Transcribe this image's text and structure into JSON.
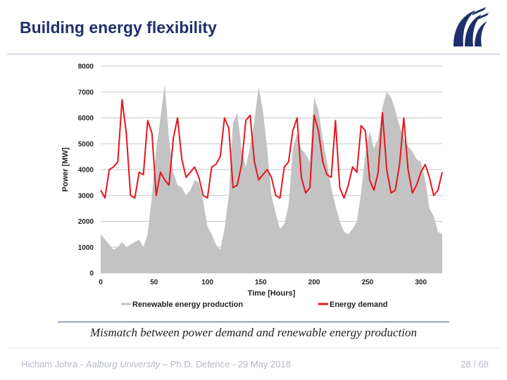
{
  "slide": {
    "title": "Building energy flexibility",
    "caption": "Mismatch between power demand and renewable energy production",
    "footer_author": "Hicham Johra - ",
    "footer_univ": "Aalborg University",
    "footer_rest": " – Ph.D. Defence - 29 May 2018",
    "page": "28 / 68",
    "logo_icon": "aalborg-university-logo"
  },
  "colors": {
    "title": "#1f2f6b",
    "demand": "#e8141b",
    "renewable": "#c3c3c3",
    "logo": "#1f2f6b"
  },
  "chart_data": {
    "type": "area",
    "xlabel": "Time [Hours]",
    "ylabel": "Power [MW]",
    "xlim": [
      0,
      320
    ],
    "ylim": [
      0,
      8000
    ],
    "xticks": [
      0,
      50,
      100,
      150,
      200,
      250,
      300
    ],
    "yticks": [
      0,
      1000,
      2000,
      3000,
      4000,
      5000,
      6000,
      7000,
      8000
    ],
    "grid": "horizontal",
    "legend_position": "bottom",
    "series": [
      {
        "name": "Renewable energy production",
        "kind": "area",
        "x": [
          0,
          4,
          8,
          12,
          16,
          20,
          24,
          28,
          32,
          36,
          40,
          44,
          48,
          52,
          56,
          60,
          64,
          68,
          72,
          76,
          80,
          84,
          88,
          92,
          96,
          100,
          104,
          108,
          112,
          116,
          120,
          124,
          128,
          132,
          136,
          140,
          144,
          148,
          152,
          156,
          160,
          164,
          168,
          172,
          176,
          180,
          184,
          188,
          192,
          196,
          200,
          204,
          208,
          212,
          216,
          220,
          224,
          228,
          232,
          236,
          240,
          244,
          248,
          252,
          256,
          260,
          264,
          268,
          272,
          276,
          280,
          284,
          288,
          292,
          296,
          300,
          304,
          308,
          312,
          316,
          320
        ],
        "values": [
          1500,
          1300,
          1100,
          900,
          1000,
          1200,
          1000,
          1100,
          1200,
          1300,
          1000,
          1500,
          3000,
          4800,
          6000,
          7300,
          5200,
          3900,
          3400,
          3300,
          3000,
          3200,
          3600,
          3500,
          2800,
          1800,
          1500,
          1100,
          900,
          1700,
          3000,
          5800,
          6200,
          4800,
          4100,
          4900,
          5900,
          7200,
          6300,
          4800,
          3000,
          2300,
          1700,
          1900,
          2600,
          4800,
          5400,
          4800,
          4600,
          4300,
          6800,
          6300,
          5200,
          4300,
          3300,
          2600,
          2000,
          1600,
          1500,
          1700,
          2000,
          3100,
          4600,
          5500,
          4800,
          5200,
          6400,
          7000,
          6800,
          6300,
          5700,
          5200,
          4900,
          4700,
          4400,
          4300,
          3600,
          2500,
          2200,
          1600,
          1500
        ]
      },
      {
        "name": "Energy demand",
        "kind": "line",
        "x": [
          0,
          4,
          8,
          12,
          16,
          20,
          24,
          28,
          32,
          36,
          40,
          44,
          48,
          52,
          56,
          60,
          64,
          68,
          72,
          76,
          80,
          84,
          88,
          92,
          96,
          100,
          104,
          108,
          112,
          116,
          120,
          124,
          128,
          132,
          136,
          140,
          144,
          148,
          152,
          156,
          160,
          164,
          168,
          172,
          176,
          180,
          184,
          188,
          192,
          196,
          200,
          204,
          208,
          212,
          216,
          220,
          224,
          228,
          232,
          236,
          240,
          244,
          248,
          252,
          256,
          260,
          264,
          268,
          272,
          276,
          280,
          284,
          288,
          292,
          296,
          300,
          304,
          308,
          312,
          316,
          320
        ],
        "values": [
          3200,
          2900,
          4000,
          4100,
          4300,
          6700,
          5400,
          3000,
          2900,
          3900,
          3800,
          5900,
          5400,
          3000,
          3900,
          3600,
          3400,
          5200,
          6000,
          4400,
          3700,
          3900,
          4100,
          3700,
          3000,
          2900,
          4100,
          4200,
          4500,
          6000,
          5600,
          3300,
          3400,
          4200,
          5900,
          6100,
          4300,
          3600,
          3800,
          4000,
          3700,
          3000,
          2900,
          4100,
          4300,
          5500,
          6000,
          3700,
          3100,
          3300,
          6100,
          5500,
          4300,
          3800,
          3700,
          5900,
          3300,
          2900,
          3400,
          4100,
          3900,
          5700,
          5500,
          3600,
          3200,
          3900,
          6200,
          4000,
          3100,
          3200,
          4200,
          6000,
          4000,
          3100,
          3400,
          3900,
          4200,
          3700,
          3000,
          3200,
          3900
        ]
      }
    ]
  }
}
